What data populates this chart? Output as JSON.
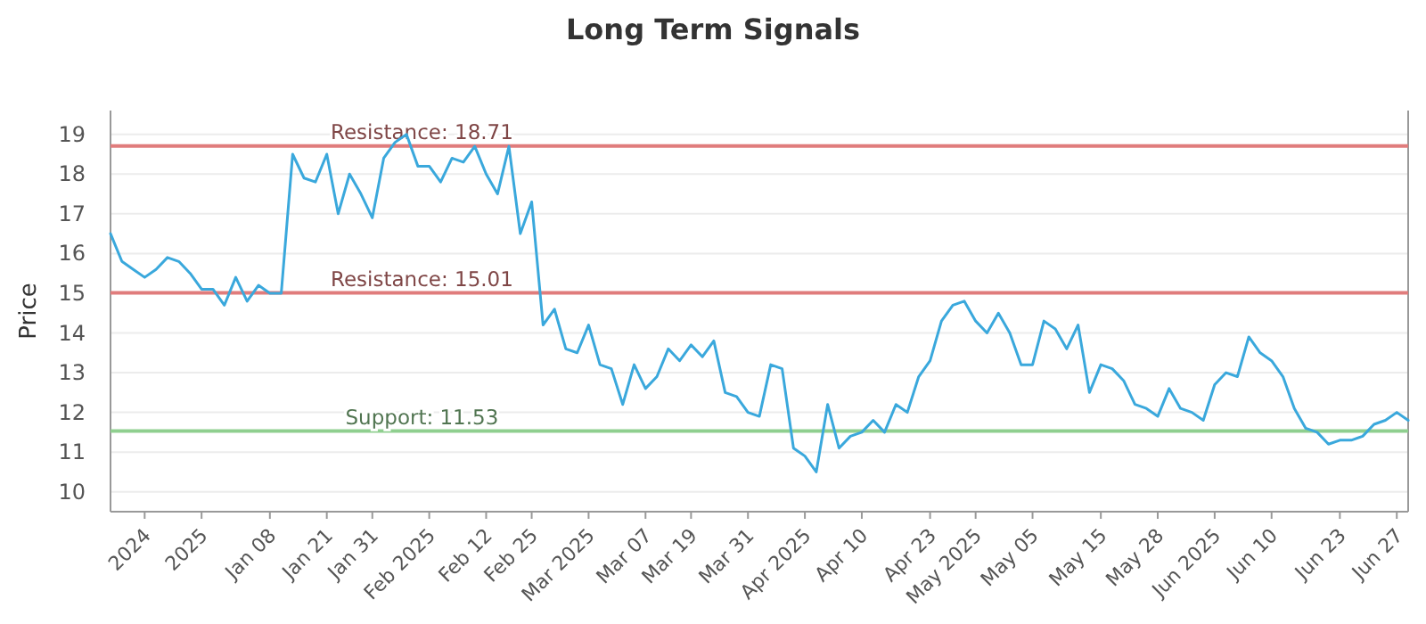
{
  "chart_data": {
    "type": "line",
    "title": "Long Term Signals",
    "ylabel": "Price",
    "categories": [
      null,
      null,
      null,
      "2024",
      null,
      null,
      null,
      null,
      "2025",
      null,
      null,
      null,
      null,
      null,
      "Jan 08",
      null,
      null,
      null,
      null,
      "Jan 21",
      null,
      null,
      null,
      "Jan 31",
      null,
      null,
      null,
      null,
      "Feb 2025",
      null,
      null,
      null,
      null,
      "Feb 12",
      null,
      null,
      null,
      "Feb 25",
      null,
      null,
      null,
      null,
      "Mar 2025",
      null,
      null,
      null,
      null,
      "Mar 07",
      null,
      null,
      null,
      "Mar 19",
      null,
      null,
      null,
      null,
      "Mar 31",
      null,
      null,
      null,
      null,
      "Apr 2025",
      null,
      null,
      null,
      null,
      "Apr 10",
      null,
      null,
      null,
      null,
      null,
      "Apr 23",
      null,
      null,
      null,
      "May 2025",
      null,
      null,
      null,
      null,
      "May 05",
      null,
      null,
      null,
      null,
      null,
      "May 15",
      null,
      null,
      null,
      null,
      "May 28",
      null,
      null,
      null,
      null,
      "Jun 2025",
      null,
      null,
      null,
      null,
      "Jun 10",
      null,
      null,
      null,
      null,
      null,
      "Jun 23",
      null,
      null,
      null,
      null,
      "Jun 27",
      null
    ],
    "series": [
      {
        "color": "#3aa8dc",
        "values": [
          16.5,
          15.8,
          15.6,
          15.4,
          15.6,
          15.9,
          15.8,
          15.5,
          15.1,
          15.1,
          14.7,
          15.4,
          14.8,
          15.2,
          15.0,
          15.0,
          18.5,
          17.9,
          17.8,
          18.5,
          17.0,
          18.0,
          17.5,
          16.9,
          18.4,
          18.8,
          19.0,
          18.2,
          18.2,
          17.8,
          18.4,
          18.3,
          18.7,
          18.0,
          17.5,
          18.7,
          16.5,
          17.3,
          14.2,
          14.6,
          13.6,
          13.5,
          14.2,
          13.2,
          13.1,
          12.2,
          13.2,
          12.6,
          12.9,
          13.6,
          13.3,
          13.7,
          13.4,
          13.8,
          12.5,
          12.4,
          12.0,
          11.9,
          13.2,
          13.1,
          11.1,
          10.9,
          10.5,
          12.2,
          11.1,
          11.4,
          11.5,
          11.8,
          11.5,
          12.2,
          12.0,
          12.9,
          13.3,
          14.3,
          14.7,
          14.8,
          14.3,
          14.0,
          14.5,
          14.0,
          13.2,
          13.2,
          14.3,
          14.1,
          13.6,
          14.2,
          12.5,
          13.2,
          13.1,
          12.8,
          12.2,
          12.1,
          11.9,
          12.6,
          12.1,
          12.0,
          11.8,
          12.7,
          13.0,
          12.9,
          13.9,
          13.5,
          13.3,
          12.9,
          12.1,
          11.6,
          11.5,
          11.2,
          11.3,
          11.3,
          11.4,
          11.7,
          11.8,
          12.0,
          11.8
        ]
      }
    ],
    "ylim": [
      9.5,
      19.6
    ],
    "yticks": [
      10,
      11,
      12,
      13,
      14,
      15,
      16,
      17,
      18,
      19
    ],
    "grid": "y",
    "ref_lines": [
      {
        "axis": "y",
        "value": 18.71,
        "label": "Resistance: 18.71",
        "color": "#e07c7c"
      },
      {
        "axis": "y",
        "value": 15.01,
        "label": "Resistance: 15.01",
        "color": "#e07c7c"
      },
      {
        "axis": "y",
        "value": 11.53,
        "label": "Support: 11.53",
        "color": "#8fcf8f"
      }
    ]
  }
}
